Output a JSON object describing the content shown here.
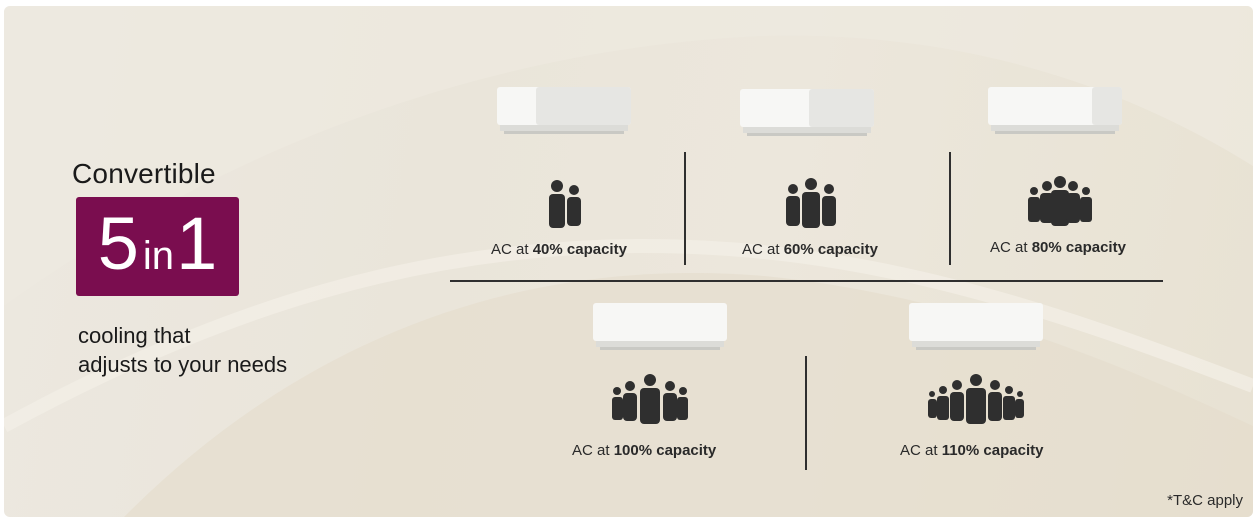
{
  "headline": "Convertible",
  "badge": {
    "number_left": "5",
    "middle": "in",
    "number_right": "1"
  },
  "subtext": [
    "cooling that",
    "adjusts to your needs"
  ],
  "capacities": [
    {
      "prefix": "AC at",
      "percent": "40%",
      "suffix": "capacity"
    },
    {
      "prefix": "AC at",
      "percent": "60%",
      "suffix": "capacity"
    },
    {
      "prefix": "AC at",
      "percent": "80%",
      "suffix": "capacity"
    },
    {
      "prefix": "AC at",
      "percent": "100%",
      "suffix": "capacity"
    },
    {
      "prefix": "AC at",
      "percent": "110%",
      "suffix": "capacity"
    }
  ],
  "colors": {
    "badge": "#7a0d4f",
    "icon": "#2f2f2f",
    "divider": "#2f2f2f"
  },
  "icons": [
    "air-conditioner-icon",
    "people-group-icon"
  ],
  "footnote": "*T&C apply"
}
